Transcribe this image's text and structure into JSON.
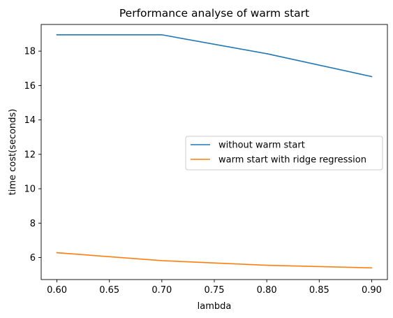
{
  "chart_data": {
    "type": "line",
    "title": "Performance analyse of warm start",
    "xlabel": "lambda",
    "ylabel": "time cost(seconds)",
    "x": [
      0.6,
      0.7,
      0.8,
      0.9
    ],
    "xticks": [
      "0.60",
      "0.65",
      "0.70",
      "0.75",
      "0.80",
      "0.85",
      "0.90"
    ],
    "yticks": [
      "6",
      "8",
      "10",
      "12",
      "14",
      "16",
      "18"
    ],
    "xlim": [
      0.585,
      0.915
    ],
    "ylim": [
      4.72,
      19.55
    ],
    "grid": false,
    "legend_position": "center-right",
    "series": [
      {
        "name": "without warm start",
        "color": "#1f77b4",
        "values": [
          18.95,
          18.95,
          17.85,
          16.52
        ]
      },
      {
        "name": "warm start with ridge regression",
        "color": "#ff7f0e",
        "values": [
          6.28,
          5.82,
          5.55,
          5.4
        ]
      }
    ]
  }
}
